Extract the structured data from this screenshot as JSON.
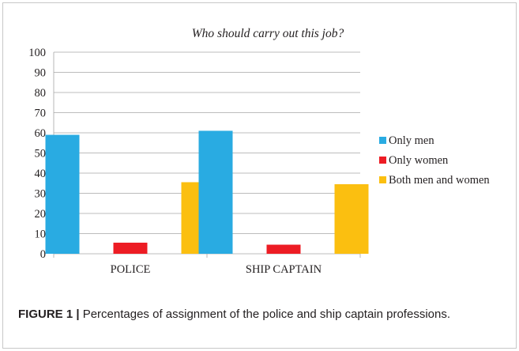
{
  "chart_data": {
    "type": "bar",
    "title": "Who should carry out this job?",
    "categories": [
      "POLICE",
      "SHIP CAPTAIN"
    ],
    "series": [
      {
        "name": "Only men",
        "color": "#29abe2",
        "values": [
          59,
          61
        ]
      },
      {
        "name": "Only women",
        "color": "#ed1c24",
        "values": [
          5.5,
          4.5
        ]
      },
      {
        "name": "Both men and women",
        "color": "#fbbf10",
        "values": [
          35.5,
          34.5
        ]
      }
    ],
    "ylim": [
      0,
      100
    ],
    "yticks": [
      "0",
      "10",
      "20",
      "30",
      "40",
      "50",
      "60",
      "70",
      "80",
      "90",
      "100"
    ],
    "yticks_values": [
      0,
      10,
      20,
      30,
      40,
      50,
      60,
      70,
      80,
      90,
      100
    ],
    "grid": true,
    "legend": "right"
  },
  "caption": {
    "label": "FIGURE 1 |",
    "text": " Percentages of assignment of the police and ship captain professions."
  }
}
